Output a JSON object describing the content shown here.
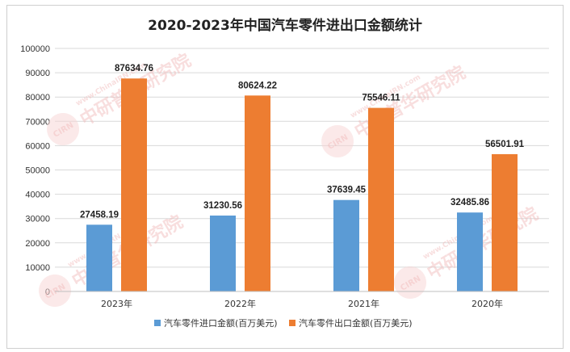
{
  "chart_data": {
    "type": "bar",
    "title": "2020-2023年中国汽车零件进出口金额统计",
    "categories": [
      "2023年",
      "2022年",
      "2021年",
      "2020年"
    ],
    "series": [
      {
        "name": "汽车零件进口金额(百万美元)",
        "color": "#5b9bd5",
        "values": [
          27458.19,
          31230.56,
          37639.45,
          32485.86
        ],
        "labels": [
          "27458.19",
          "31230.56",
          "37639.45",
          "32485.86"
        ]
      },
      {
        "name": "汽车零件出口金额(百万美元)",
        "color": "#ed7d31",
        "values": [
          87634.76,
          80624.22,
          75546.11,
          56501.91
        ],
        "labels": [
          "87634.76",
          "80624.22",
          "75546.11",
          "56501.91"
        ]
      }
    ],
    "ylim": [
      0,
      100000
    ],
    "yticks": [
      "0",
      "10000",
      "20000",
      "30000",
      "40000",
      "50000",
      "60000",
      "70000",
      "80000",
      "90000",
      "100000"
    ],
    "grid": true,
    "legend": "bottom"
  },
  "watermark": {
    "text": "中研普华研究院",
    "sub": "www.ChinaIRN.com",
    "logo": "CIRN"
  }
}
